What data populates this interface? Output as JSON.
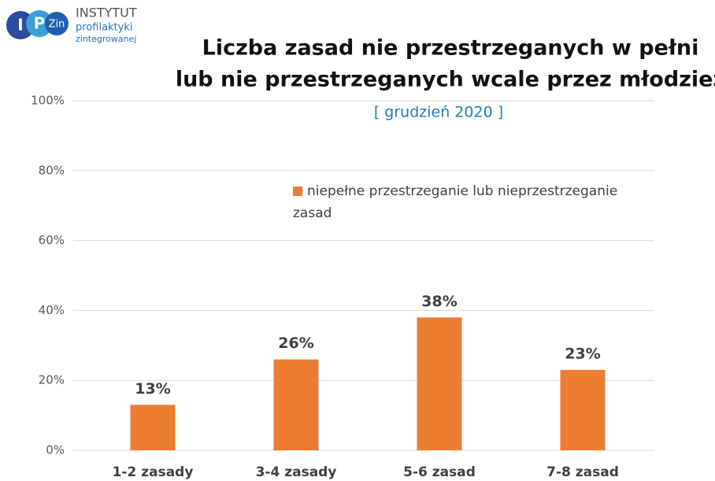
{
  "logo": {
    "letters": [
      "I",
      "P",
      "Zin"
    ],
    "lines": [
      "INSTYTUT",
      "profilaktyki",
      "zintegrowanej"
    ]
  },
  "chart_data": {
    "type": "bar",
    "title": [
      "Liczba zasad nie przestrzeganych w pełni",
      "lub nie przestrzeganych wcale przez młodzież"
    ],
    "subtitle": "[ grudzień 2020 ]",
    "categories": [
      "1-2 zasady",
      "3-4 zasady",
      "5-6 zasad",
      "7-8 zasad"
    ],
    "series": [
      {
        "name": "niepełne przestrzeganie lub nieprzestrzeganie zasad",
        "color": "#ed7d31",
        "values": [
          13,
          26,
          38,
          23
        ],
        "value_labels": [
          "13%",
          "26%",
          "38%",
          "23%"
        ]
      }
    ],
    "ylim": [
      0,
      100
    ],
    "yticks": [
      {
        "value": 0,
        "label": "0%"
      },
      {
        "value": 20,
        "label": "20%"
      },
      {
        "value": 40,
        "label": "40%"
      },
      {
        "value": 60,
        "label": "60%"
      },
      {
        "value": 80,
        "label": "80%"
      },
      {
        "value": 100,
        "label": "100%"
      }
    ],
    "grid": true
  }
}
